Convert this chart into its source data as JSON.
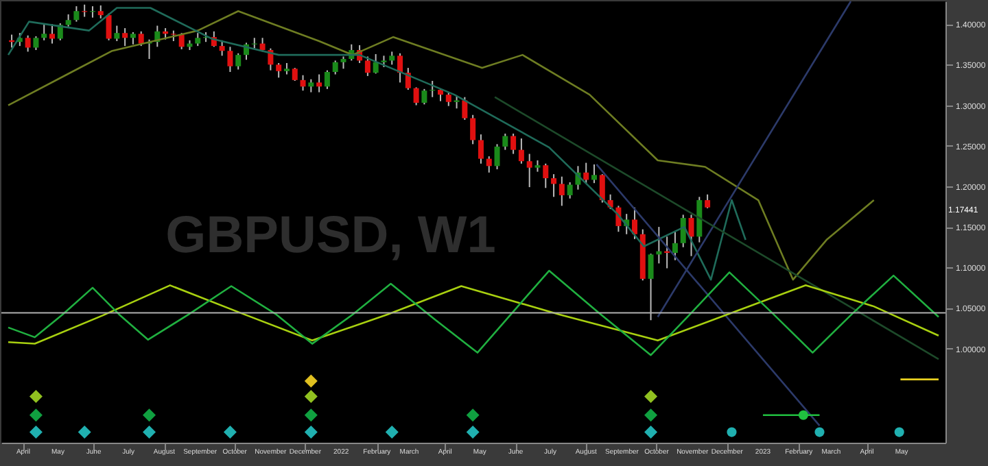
{
  "chart_data": {
    "type": "candlestick",
    "title": "GBPUSD, W1",
    "x": [
      "2021-03-22",
      "2021-03-29",
      "2021-04-05",
      "2021-04-12",
      "2021-04-19",
      "2021-04-26",
      "2021-05-03",
      "2021-05-10",
      "2021-05-17",
      "2021-05-24",
      "2021-05-31",
      "2021-06-07",
      "2021-06-14",
      "2021-06-21",
      "2021-06-28",
      "2021-07-05",
      "2021-07-12",
      "2021-07-19",
      "2021-07-26",
      "2021-08-02",
      "2021-08-09",
      "2021-08-16",
      "2021-08-23",
      "2021-08-30",
      "2021-09-06",
      "2021-09-13",
      "2021-09-20",
      "2021-09-27",
      "2021-10-04",
      "2021-10-11",
      "2021-10-18",
      "2021-10-25",
      "2021-11-01",
      "2021-11-08",
      "2021-11-15",
      "2021-11-22",
      "2021-11-29",
      "2021-12-06",
      "2021-12-13",
      "2021-12-20",
      "2021-12-27",
      "2022-01-03",
      "2022-01-10",
      "2022-01-17",
      "2022-01-24",
      "2022-01-31",
      "2022-02-07",
      "2022-02-14",
      "2022-02-21",
      "2022-02-28",
      "2022-03-07",
      "2022-03-14",
      "2022-03-21",
      "2022-03-28",
      "2022-04-04",
      "2022-04-11",
      "2022-04-18",
      "2022-04-25",
      "2022-05-02",
      "2022-05-09",
      "2022-05-16",
      "2022-05-23",
      "2022-05-30",
      "2022-06-06",
      "2022-06-13",
      "2022-06-20",
      "2022-06-27",
      "2022-07-04",
      "2022-07-11",
      "2022-07-18",
      "2022-07-25",
      "2022-08-01",
      "2022-08-08",
      "2022-08-15",
      "2022-08-22",
      "2022-08-29",
      "2022-09-05",
      "2022-09-12",
      "2022-09-19",
      "2022-09-26",
      "2022-10-03",
      "2022-10-10",
      "2022-10-17",
      "2022-10-24",
      "2022-10-31",
      "2022-11-07",
      "2022-11-14"
    ],
    "ohlc": [
      [
        1.38,
        1.387,
        1.371,
        1.378
      ],
      [
        1.378,
        1.389,
        1.373,
        1.383
      ],
      [
        1.383,
        1.386,
        1.366,
        1.371
      ],
      [
        1.371,
        1.385,
        1.368,
        1.383
      ],
      [
        1.383,
        1.401,
        1.38,
        1.388
      ],
      [
        1.388,
        1.4,
        1.376,
        1.382
      ],
      [
        1.382,
        1.401,
        1.38,
        1.399
      ],
      [
        1.399,
        1.412,
        1.397,
        1.405
      ],
      [
        1.405,
        1.422,
        1.403,
        1.416
      ],
      [
        1.416,
        1.424,
        1.409,
        1.415
      ],
      [
        1.415,
        1.422,
        1.408,
        1.416
      ],
      [
        1.416,
        1.423,
        1.407,
        1.411
      ],
      [
        1.411,
        1.413,
        1.38,
        1.382
      ],
      [
        1.382,
        1.398,
        1.379,
        1.389
      ],
      [
        1.389,
        1.395,
        1.373,
        1.383
      ],
      [
        1.383,
        1.39,
        1.375,
        1.388
      ],
      [
        1.388,
        1.391,
        1.373,
        1.376
      ],
      [
        1.376,
        1.381,
        1.357,
        1.378
      ],
      [
        1.378,
        1.398,
        1.372,
        1.391
      ],
      [
        1.391,
        1.395,
        1.381,
        1.388
      ],
      [
        1.388,
        1.392,
        1.379,
        1.387
      ],
      [
        1.387,
        1.389,
        1.369,
        1.372
      ],
      [
        1.372,
        1.38,
        1.368,
        1.376
      ],
      [
        1.376,
        1.389,
        1.373,
        1.383
      ],
      [
        1.383,
        1.39,
        1.378,
        1.384
      ],
      [
        1.384,
        1.391,
        1.372,
        1.373
      ],
      [
        1.373,
        1.38,
        1.361,
        1.367
      ],
      [
        1.367,
        1.372,
        1.341,
        1.348
      ],
      [
        1.348,
        1.364,
        1.344,
        1.362
      ],
      [
        1.362,
        1.377,
        1.356,
        1.375
      ],
      [
        1.375,
        1.383,
        1.37,
        1.376
      ],
      [
        1.376,
        1.383,
        1.366,
        1.368
      ],
      [
        1.368,
        1.37,
        1.343,
        1.35
      ],
      [
        1.35,
        1.352,
        1.334,
        1.342
      ],
      [
        1.342,
        1.352,
        1.338,
        1.345
      ],
      [
        1.345,
        1.346,
        1.33,
        1.331
      ],
      [
        1.331,
        1.337,
        1.318,
        1.323
      ],
      [
        1.323,
        1.332,
        1.316,
        1.328
      ],
      [
        1.328,
        1.338,
        1.316,
        1.323
      ],
      [
        1.323,
        1.343,
        1.32,
        1.341
      ],
      [
        1.341,
        1.355,
        1.338,
        1.353
      ],
      [
        1.353,
        1.36,
        1.345,
        1.357
      ],
      [
        1.357,
        1.375,
        1.355,
        1.368
      ],
      [
        1.368,
        1.374,
        1.352,
        1.355
      ],
      [
        1.355,
        1.36,
        1.336,
        1.34
      ],
      [
        1.34,
        1.363,
        1.339,
        1.353
      ],
      [
        1.353,
        1.361,
        1.347,
        1.355
      ],
      [
        1.355,
        1.366,
        1.35,
        1.361
      ],
      [
        1.361,
        1.364,
        1.328,
        1.34
      ],
      [
        1.34,
        1.346,
        1.319,
        1.321
      ],
      [
        1.321,
        1.322,
        1.3,
        1.303
      ],
      [
        1.303,
        1.32,
        1.301,
        1.318
      ],
      [
        1.318,
        1.33,
        1.31,
        1.319
      ],
      [
        1.319,
        1.32,
        1.305,
        1.313
      ],
      [
        1.313,
        1.316,
        1.299,
        1.304
      ],
      [
        1.304,
        1.311,
        1.296,
        1.306
      ],
      [
        1.306,
        1.31,
        1.282,
        1.284
      ],
      [
        1.284,
        1.288,
        1.252,
        1.257
      ],
      [
        1.257,
        1.264,
        1.228,
        1.234
      ],
      [
        1.234,
        1.237,
        1.217,
        1.225
      ],
      [
        1.225,
        1.252,
        1.221,
        1.249
      ],
      [
        1.249,
        1.265,
        1.245,
        1.262
      ],
      [
        1.262,
        1.265,
        1.24,
        1.245
      ],
      [
        1.245,
        1.259,
        1.228,
        1.231
      ],
      [
        1.231,
        1.24,
        1.199,
        1.223
      ],
      [
        1.223,
        1.232,
        1.218,
        1.226
      ],
      [
        1.226,
        1.228,
        1.198,
        1.21
      ],
      [
        1.21,
        1.215,
        1.187,
        1.203
      ],
      [
        1.203,
        1.212,
        1.176,
        1.189
      ],
      [
        1.189,
        1.205,
        1.185,
        1.202
      ],
      [
        1.202,
        1.225,
        1.196,
        1.217
      ],
      [
        1.217,
        1.229,
        1.204,
        1.208
      ],
      [
        1.208,
        1.227,
        1.204,
        1.214
      ],
      [
        1.214,
        1.215,
        1.18,
        1.183
      ],
      [
        1.183,
        1.19,
        1.172,
        1.174
      ],
      [
        1.174,
        1.176,
        1.144,
        1.151
      ],
      [
        1.151,
        1.166,
        1.141,
        1.159
      ],
      [
        1.159,
        1.174,
        1.135,
        1.141
      ],
      [
        1.141,
        1.147,
        1.084,
        1.086
      ],
      [
        1.086,
        1.117,
        1.035,
        1.116
      ],
      [
        1.116,
        1.15,
        1.105,
        1.12
      ],
      [
        1.12,
        1.138,
        1.099,
        1.118
      ],
      [
        1.118,
        1.144,
        1.109,
        1.13
      ],
      [
        1.13,
        1.165,
        1.125,
        1.161
      ],
      [
        1.161,
        1.165,
        1.114,
        1.138
      ],
      [
        1.138,
        1.187,
        1.131,
        1.183
      ],
      [
        1.183,
        1.19,
        1.173,
        1.174
      ]
    ],
    "series": [
      {
        "type": "line",
        "color": "#6e7d22",
        "x": [
          "2021-03-19",
          "2021-05-13",
          "2021-06-17",
          "2021-08-30",
          "2021-10-04",
          "2021-12-13",
          "2022-01-11",
          "2022-02-15",
          "2022-05-03",
          "2022-06-07",
          "2022-08-04",
          "2022-10-02",
          "2022-11-12",
          "2022-12-28",
          "2023-01-27",
          "2023-02-25",
          "2023-04-07"
        ],
        "values": [
          1.3,
          1.341,
          1.367,
          1.392,
          1.416,
          1.379,
          1.362,
          1.384,
          1.346,
          1.362,
          1.313,
          1.232,
          1.224,
          1.183,
          1.085,
          1.134,
          1.183
        ]
      },
      {
        "type": "line",
        "color": "#1f6b5a",
        "x": [
          "2021-03-19",
          "2021-04-06",
          "2021-05-28",
          "2021-06-21",
          "2021-07-20",
          "2021-09-11",
          "2021-11-08",
          "2022-01-17",
          "2022-04-09",
          "2022-06-30",
          "2022-08-28",
          "2022-09-20",
          "2022-10-25",
          "2022-11-17",
          "2022-12-05",
          "2022-12-17"
        ],
        "values": [
          1.362,
          1.403,
          1.392,
          1.42,
          1.42,
          1.382,
          1.362,
          1.362,
          1.313,
          1.248,
          1.166,
          1.126,
          1.15,
          1.085,
          1.183,
          1.134
        ]
      },
      {
        "type": "line",
        "color": "#2c3a6a",
        "x": [
          "2022-10-02",
          "2023-03-18"
        ],
        "values": [
          1.039,
          1.428
        ]
      },
      {
        "type": "line",
        "color": "#2c3a6a",
        "x": [
          "2022-08-10",
          "2023-02-19"
        ],
        "values": [
          1.227,
          0.905
        ]
      },
      {
        "type": "line",
        "color": "#1d4a2a",
        "x": [
          "2022-05-14",
          "2023-06-02"
        ],
        "values": [
          1.31,
          0.987
        ]
      },
      {
        "type": "line",
        "color": "#a8d010",
        "x": [
          "2021-03-19",
          "2021-04-11",
          "2021-06-09",
          "2021-08-06",
          "2021-10-06",
          "2021-12-07",
          "2022-02-10",
          "2022-04-15",
          "2022-07-09",
          "2022-10-02",
          "2022-12-05",
          "2023-02-07",
          "2023-04-07",
          "2023-06-02"
        ],
        "values": [
          1.008,
          1.006,
          1.041,
          1.078,
          1.044,
          1.01,
          1.042,
          1.077,
          1.042,
          1.01,
          1.044,
          1.078,
          1.052,
          1.016
        ]
      },
      {
        "type": "line",
        "color": "#20b040",
        "x": [
          "2021-03-19",
          "2021-04-11",
          "2021-05-05",
          "2021-05-31",
          "2021-06-23",
          "2021-07-18",
          "2021-08-22",
          "2021-09-28",
          "2021-11-06",
          "2021-12-07",
          "2022-01-11",
          "2022-02-13",
          "2022-03-23",
          "2022-04-29",
          "2022-05-29",
          "2022-06-30",
          "2022-08-12",
          "2022-09-26",
          "2022-10-31",
          "2022-12-03",
          "2023-01-09",
          "2023-02-13",
          "2023-03-20",
          "2023-04-24",
          "2023-06-02"
        ],
        "values": [
          1.026,
          1.014,
          1.042,
          1.075,
          1.042,
          1.011,
          1.042,
          1.077,
          1.042,
          1.006,
          1.042,
          1.08,
          1.036,
          0.995,
          1.044,
          1.096,
          1.044,
          0.992,
          1.044,
          1.094,
          1.044,
          0.995,
          1.044,
          1.09,
          1.039
        ]
      },
      {
        "type": "line",
        "color": "#20c040",
        "x": [
          "2023-01-01",
          "2023-02-19"
        ],
        "values": [
          0.918,
          0.918
        ]
      },
      {
        "type": "line",
        "color": "#e8d020",
        "x": [
          "2023-04-30",
          "2023-06-02"
        ],
        "values": [
          0.962,
          0.962
        ]
      },
      {
        "type": "scatter",
        "marker": "diamond",
        "color": "#20b0b0",
        "x": [
          "2021-04-12",
          "2021-05-24",
          "2021-07-19",
          "2021-09-27",
          "2021-12-06",
          "2022-02-14",
          "2022-04-25",
          "2022-09-26"
        ],
        "values": [
          0.897,
          0.897,
          0.897,
          0.897,
          0.897,
          0.897,
          0.897,
          0.897
        ]
      },
      {
        "type": "scatter",
        "marker": "diamond",
        "color": "#10a040",
        "x": [
          "2021-04-12",
          "2021-07-19",
          "2021-12-06",
          "2022-04-25",
          "2022-09-26"
        ],
        "values": [
          0.918,
          0.918,
          0.918,
          0.918,
          0.918
        ]
      },
      {
        "type": "scatter",
        "marker": "diamond",
        "color": "#90c020",
        "x": [
          "2021-04-12",
          "2021-12-06",
          "2022-09-26"
        ],
        "values": [
          0.941,
          0.941,
          0.941
        ]
      },
      {
        "type": "scatter",
        "marker": "diamond",
        "color": "#e0c020",
        "x": [
          "2021-12-06"
        ],
        "values": [
          0.96
        ]
      },
      {
        "type": "scatter",
        "marker": "circle",
        "color": "#20b0b0",
        "x": [
          "2022-12-05",
          "2023-02-19",
          "2023-04-29"
        ],
        "values": [
          0.897,
          0.897,
          0.897
        ]
      },
      {
        "type": "scatter",
        "marker": "circle",
        "color": "#20c040",
        "x": [
          "2023-02-05"
        ],
        "values": [
          0.918
        ]
      }
    ],
    "ref_lines": [
      {
        "axis": "y",
        "value": 1.044,
        "color": "#b0b0b0"
      }
    ],
    "annotations": [
      "1.17441"
    ],
    "xlim": [
      "2021-03-19",
      "2023-06-02"
    ],
    "xticks": [
      {
        "value": "2021-04",
        "label": "April"
      },
      {
        "value": "2021-05",
        "label": "May"
      },
      {
        "value": "2021-06",
        "label": "June"
      },
      {
        "value": "2021-07",
        "label": "July"
      },
      {
        "value": "2021-08",
        "label": "August"
      },
      {
        "value": "2021-09",
        "label": "September"
      },
      {
        "value": "2021-10",
        "label": "October"
      },
      {
        "value": "2021-11",
        "label": "November"
      },
      {
        "value": "2021-12",
        "label": "December"
      },
      {
        "value": "2022-01",
        "label": "2022"
      },
      {
        "value": "2022-02",
        "label": "February"
      },
      {
        "value": "2022-03",
        "label": "March"
      },
      {
        "value": "2022-04",
        "label": "April"
      },
      {
        "value": "2022-05",
        "label": "May"
      },
      {
        "value": "2022-06",
        "label": "June"
      },
      {
        "value": "2022-07",
        "label": "July"
      },
      {
        "value": "2022-08",
        "label": "August"
      },
      {
        "value": "2022-09",
        "label": "September"
      },
      {
        "value": "2022-10",
        "label": "October"
      },
      {
        "value": "2022-11",
        "label": "November"
      },
      {
        "value": "2022-12",
        "label": "December"
      },
      {
        "value": "2023-01",
        "label": "2023"
      },
      {
        "value": "2023-02",
        "label": "February"
      },
      {
        "value": "2023-03",
        "label": "March"
      },
      {
        "value": "2023-04",
        "label": "April"
      },
      {
        "value": "2023-05",
        "label": "May"
      }
    ],
    "ylim": [
      0.884,
      1.428
    ],
    "yticks": [
      {
        "value": 1.0,
        "label": "1.00000"
      },
      {
        "value": 1.05,
        "label": "1.05000"
      },
      {
        "value": 1.1,
        "label": "1.10000"
      },
      {
        "value": 1.15,
        "label": "1.15000"
      },
      {
        "value": 1.2,
        "label": "1.20000"
      },
      {
        "value": 1.25,
        "label": "1.25000"
      },
      {
        "value": 1.3,
        "label": "1.30000"
      },
      {
        "value": 1.35,
        "label": "1.35000"
      },
      {
        "value": 1.4,
        "label": "1.40000"
      }
    ],
    "grid": false
  }
}
